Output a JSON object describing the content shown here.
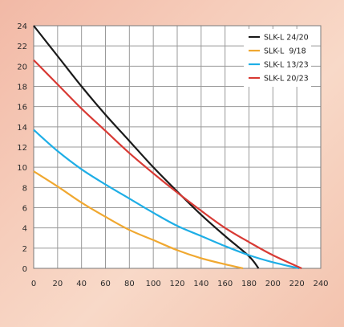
{
  "chart_data": {
    "type": "line",
    "title": "",
    "xlabel": "",
    "ylabel": "",
    "xlim": [
      0,
      240
    ],
    "ylim": [
      0,
      24
    ],
    "x_ticks": [
      0,
      20,
      40,
      60,
      80,
      100,
      120,
      140,
      160,
      180,
      200,
      220,
      240
    ],
    "y_ticks": [
      0,
      2,
      4,
      6,
      8,
      10,
      12,
      14,
      16,
      18,
      20,
      22,
      24
    ],
    "grid": true,
    "legend_position": "top-right",
    "series": [
      {
        "name": "SLK-L 24/20",
        "color": "#1a1a1a",
        "points": [
          [
            0,
            24
          ],
          [
            20,
            21
          ],
          [
            40,
            18
          ],
          [
            60,
            15.2
          ],
          [
            80,
            12.6
          ],
          [
            100,
            10.0
          ],
          [
            120,
            7.6
          ],
          [
            140,
            5.3
          ],
          [
            160,
            3.2
          ],
          [
            180,
            1.2
          ],
          [
            188,
            0
          ]
        ]
      },
      {
        "name": "SLK-L  9/18",
        "color": "#f0a830",
        "points": [
          [
            0,
            9.6
          ],
          [
            20,
            8.1
          ],
          [
            40,
            6.5
          ],
          [
            60,
            5.1
          ],
          [
            80,
            3.8
          ],
          [
            100,
            2.8
          ],
          [
            120,
            1.8
          ],
          [
            140,
            1.0
          ],
          [
            160,
            0.4
          ],
          [
            175,
            0
          ]
        ]
      },
      {
        "name": "SLK-L 13/23",
        "color": "#1eaee6",
        "points": [
          [
            0,
            13.7
          ],
          [
            20,
            11.6
          ],
          [
            40,
            9.8
          ],
          [
            60,
            8.3
          ],
          [
            80,
            6.9
          ],
          [
            100,
            5.5
          ],
          [
            120,
            4.2
          ],
          [
            140,
            3.2
          ],
          [
            160,
            2.2
          ],
          [
            180,
            1.3
          ],
          [
            200,
            0.6
          ],
          [
            222,
            0
          ]
        ]
      },
      {
        "name": "SLK-L 20/23",
        "color": "#d83a34",
        "points": [
          [
            0,
            20.6
          ],
          [
            20,
            18.2
          ],
          [
            40,
            15.8
          ],
          [
            60,
            13.6
          ],
          [
            80,
            11.4
          ],
          [
            100,
            9.4
          ],
          [
            120,
            7.5
          ],
          [
            140,
            5.7
          ],
          [
            160,
            4.0
          ],
          [
            180,
            2.6
          ],
          [
            200,
            1.3
          ],
          [
            224,
            0
          ]
        ]
      }
    ]
  }
}
